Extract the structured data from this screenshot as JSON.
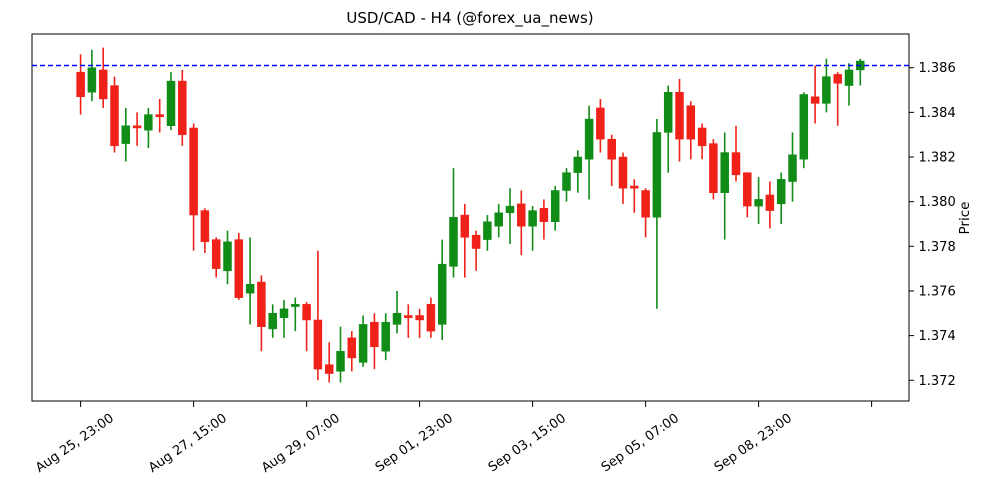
{
  "title": "USD/CAD - H4 (@forex_ua_news)",
  "chart_data": {
    "type": "candlestick",
    "symbol": "USD/CAD",
    "timeframe": "H4",
    "ylabel": "Price",
    "ylim": [
      1.3711,
      1.3875
    ],
    "grid": false,
    "y_ticks": [
      "1.372",
      "1.374",
      "1.376",
      "1.378",
      "1.380",
      "1.382",
      "1.384",
      "1.386"
    ],
    "x_ticks": [
      {
        "at": 0,
        "label": "Aug 25, 23:00"
      },
      {
        "at": 10,
        "label": "Aug 27, 15:00"
      },
      {
        "at": 20,
        "label": "Aug 29, 07:00"
      },
      {
        "at": 30,
        "label": "Sep 01, 23:00"
      },
      {
        "at": 40,
        "label": "Sep 03, 15:00"
      },
      {
        "at": 50,
        "label": "Sep 05, 07:00"
      },
      {
        "at": 60,
        "label": "Sep 08, 23:00"
      },
      {
        "at": 70,
        "label": ""
      }
    ],
    "hline": {
      "value": 1.3861,
      "color": "#0000ff",
      "style": "dashed"
    },
    "colors": {
      "up": "#108c17",
      "down": "#ef2118",
      "spine": "#000000",
      "background": "#ffffff"
    },
    "ohlc_format": [
      "open",
      "high",
      "low",
      "close"
    ],
    "candles": [
      [
        1.3858,
        1.3866,
        1.3839,
        1.3847
      ],
      [
        1.3849,
        1.3868,
        1.3845,
        1.386
      ],
      [
        1.3859,
        1.3869,
        1.3842,
        1.3846
      ],
      [
        1.3852,
        1.3856,
        1.3822,
        1.3825
      ],
      [
        1.3826,
        1.3842,
        1.3818,
        1.3834
      ],
      [
        1.3834,
        1.384,
        1.3825,
        1.3833
      ],
      [
        1.3832,
        1.3842,
        1.3824,
        1.3839
      ],
      [
        1.3839,
        1.3846,
        1.3831,
        1.3838
      ],
      [
        1.3834,
        1.3858,
        1.3832,
        1.3854
      ],
      [
        1.3854,
        1.3859,
        1.3825,
        1.383
      ],
      [
        1.3833,
        1.3835,
        1.3778,
        1.3794
      ],
      [
        1.3796,
        1.3797,
        1.3777,
        1.3782
      ],
      [
        1.3783,
        1.3784,
        1.3766,
        1.377
      ],
      [
        1.3769,
        1.3787,
        1.3763,
        1.3782
      ],
      [
        1.3783,
        1.3786,
        1.3756,
        1.3757
      ],
      [
        1.3759,
        1.3784,
        1.3745,
        1.3763
      ],
      [
        1.3764,
        1.3767,
        1.3733,
        1.3744
      ],
      [
        1.3743,
        1.3754,
        1.3739,
        1.375
      ],
      [
        1.3748,
        1.3756,
        1.3739,
        1.3752
      ],
      [
        1.3753,
        1.3757,
        1.3742,
        1.3754
      ],
      [
        1.3754,
        1.3755,
        1.3733,
        1.3747
      ],
      [
        1.3747,
        1.3778,
        1.372,
        1.3725
      ],
      [
        1.3727,
        1.3737,
        1.3719,
        1.3723
      ],
      [
        1.3724,
        1.3744,
        1.3719,
        1.3733
      ],
      [
        1.3739,
        1.3742,
        1.3724,
        1.373
      ],
      [
        1.3728,
        1.3749,
        1.3726,
        1.3745
      ],
      [
        1.3746,
        1.375,
        1.3725,
        1.3735
      ],
      [
        1.3733,
        1.375,
        1.3729,
        1.3746
      ],
      [
        1.3745,
        1.376,
        1.3741,
        1.375
      ],
      [
        1.3749,
        1.3754,
        1.3739,
        1.3748
      ],
      [
        1.3749,
        1.3752,
        1.3739,
        1.3747
      ],
      [
        1.3754,
        1.3757,
        1.3739,
        1.3742
      ],
      [
        1.3745,
        1.3783,
        1.3738,
        1.3772
      ],
      [
        1.3771,
        1.3815,
        1.3766,
        1.3793
      ],
      [
        1.3794,
        1.3799,
        1.3766,
        1.3784
      ],
      [
        1.3785,
        1.3787,
        1.3769,
        1.3779
      ],
      [
        1.3783,
        1.3794,
        1.3778,
        1.3791
      ],
      [
        1.3789,
        1.3799,
        1.3784,
        1.3795
      ],
      [
        1.3795,
        1.3806,
        1.3781,
        1.3798
      ],
      [
        1.3799,
        1.3805,
        1.3776,
        1.3789
      ],
      [
        1.3789,
        1.3798,
        1.3778,
        1.3796
      ],
      [
        1.3797,
        1.3801,
        1.3783,
        1.3791
      ],
      [
        1.3791,
        1.3807,
        1.3787,
        1.3805
      ],
      [
        1.3805,
        1.3815,
        1.38,
        1.3813
      ],
      [
        1.3813,
        1.3823,
        1.3804,
        1.382
      ],
      [
        1.3819,
        1.3843,
        1.3801,
        1.3837
      ],
      [
        1.3842,
        1.3846,
        1.3822,
        1.3828
      ],
      [
        1.3828,
        1.383,
        1.3807,
        1.3819
      ],
      [
        1.382,
        1.3822,
        1.3799,
        1.3806
      ],
      [
        1.3807,
        1.381,
        1.3795,
        1.3806
      ],
      [
        1.3805,
        1.3806,
        1.3784,
        1.3793
      ],
      [
        1.3793,
        1.3837,
        1.3752,
        1.3831
      ],
      [
        1.3831,
        1.3852,
        1.3813,
        1.3849
      ],
      [
        1.3849,
        1.3855,
        1.3818,
        1.3828
      ],
      [
        1.3843,
        1.3845,
        1.3819,
        1.3828
      ],
      [
        1.3833,
        1.3835,
        1.3819,
        1.3825
      ],
      [
        1.3826,
        1.3828,
        1.3801,
        1.3804
      ],
      [
        1.3804,
        1.3831,
        1.3783,
        1.3822
      ],
      [
        1.3822,
        1.3834,
        1.3809,
        1.3812
      ],
      [
        1.3813,
        1.3813,
        1.3793,
        1.3798
      ],
      [
        1.3798,
        1.3811,
        1.379,
        1.3801
      ],
      [
        1.3803,
        1.3809,
        1.3788,
        1.3796
      ],
      [
        1.3799,
        1.3813,
        1.379,
        1.381
      ],
      [
        1.3809,
        1.3831,
        1.38,
        1.3821
      ],
      [
        1.3819,
        1.3849,
        1.3815,
        1.3848
      ],
      [
        1.3847,
        1.3861,
        1.3835,
        1.3844
      ],
      [
        1.3844,
        1.3864,
        1.384,
        1.3856
      ],
      [
        1.3857,
        1.3858,
        1.3834,
        1.3853
      ],
      [
        1.3852,
        1.3862,
        1.3843,
        1.3859
      ],
      [
        1.3859,
        1.3864,
        1.3852,
        1.3863
      ]
    ]
  }
}
